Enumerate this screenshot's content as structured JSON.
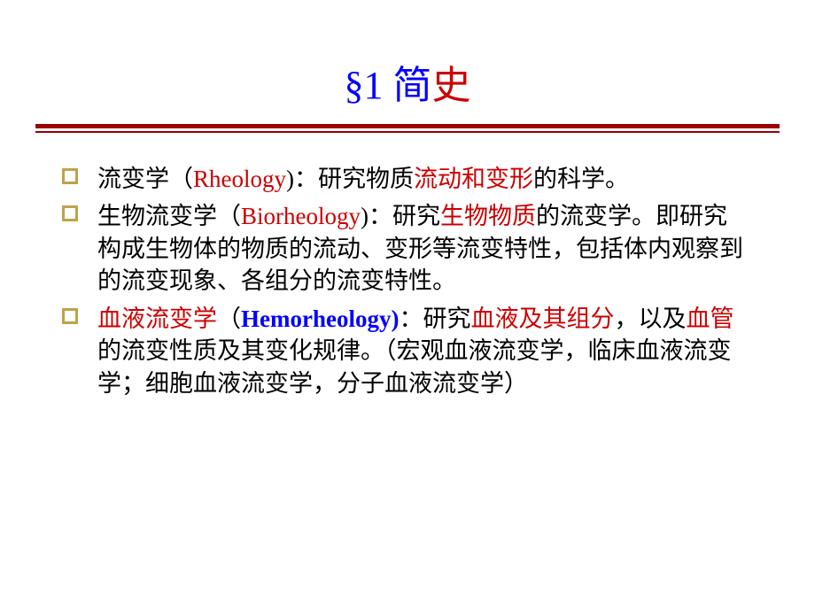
{
  "title": {
    "prefix": "§1 简",
    "suffix": "史"
  },
  "colors": {
    "blue": "#0000ff",
    "red": "#cc0000",
    "bullet_border": "#bfa24a",
    "divider": "#9a0000",
    "text": "#000000",
    "background": "#ffffff"
  },
  "items": [
    {
      "segments": [
        {
          "t": "流变学（",
          "c": "black"
        },
        {
          "t": "Rheology",
          "c": "red"
        },
        {
          "t": ")：研究物质",
          "c": "black"
        },
        {
          "t": "流动和变形",
          "c": "red"
        },
        {
          "t": "的科学。",
          "c": "black"
        }
      ]
    },
    {
      "segments": [
        {
          "t": "生物流变学（",
          "c": "black"
        },
        {
          "t": "Biorheology",
          "c": "red"
        },
        {
          "t": ")：研究",
          "c": "black"
        },
        {
          "t": "生物物质",
          "c": "red"
        },
        {
          "t": "的流变学。即研究构成生物体的物质的流动、变形等流变特性，包括体内观察到的流变现象、各组分的流变特性。",
          "c": "black"
        }
      ]
    },
    {
      "segments": [
        {
          "t": "血液流变学",
          "c": "red"
        },
        {
          "t": "（",
          "c": "black"
        },
        {
          "t": "Hemorheology)",
          "c": "blue",
          "b": true
        },
        {
          "t": "：研究",
          "c": "black"
        },
        {
          "t": "血液及其组分",
          "c": "red"
        },
        {
          "t": "，以及",
          "c": "black"
        },
        {
          "t": "血管",
          "c": "red"
        },
        {
          "t": "的流变性质及其变化规律。（宏观血液流变学，临床血液流变学；细胞血液流变学，分子血液流变学）",
          "c": "black"
        }
      ]
    }
  ]
}
